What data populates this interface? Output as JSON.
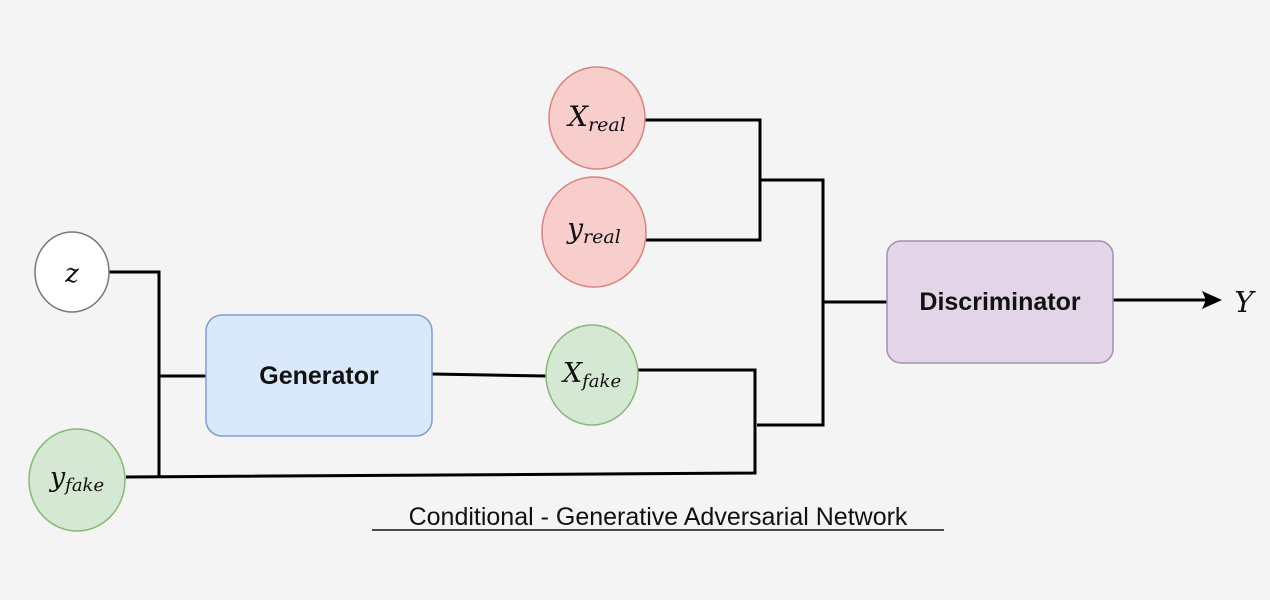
{
  "diagram": {
    "nodes": {
      "x_real": {
        "base": "X",
        "sub": "real"
      },
      "y_real": {
        "base": "y",
        "sub": "real"
      },
      "z": {
        "base": "z"
      },
      "x_fake": {
        "base": "X",
        "sub": "fake"
      },
      "y_fake": {
        "base": "y",
        "sub": "fake"
      },
      "generator": {
        "label": "Generator"
      },
      "discriminator": {
        "label": "Discriminator"
      },
      "output": {
        "base": "Y"
      }
    },
    "caption": "Conditional - Generative Adversarial Network",
    "colors": {
      "real_fill": "#f8cecc",
      "real_stroke": "#d9827f",
      "fake_fill": "#d5e8d4",
      "fake_stroke": "#86b874",
      "noise_fill": "#ffffff",
      "noise_stroke": "#777777",
      "generator_fill": "#dae8fc",
      "generator_stroke": "#7c9fcf",
      "discriminator_fill": "#e1d5e7",
      "discriminator_stroke": "#a68cb8",
      "line": "#000000"
    }
  }
}
